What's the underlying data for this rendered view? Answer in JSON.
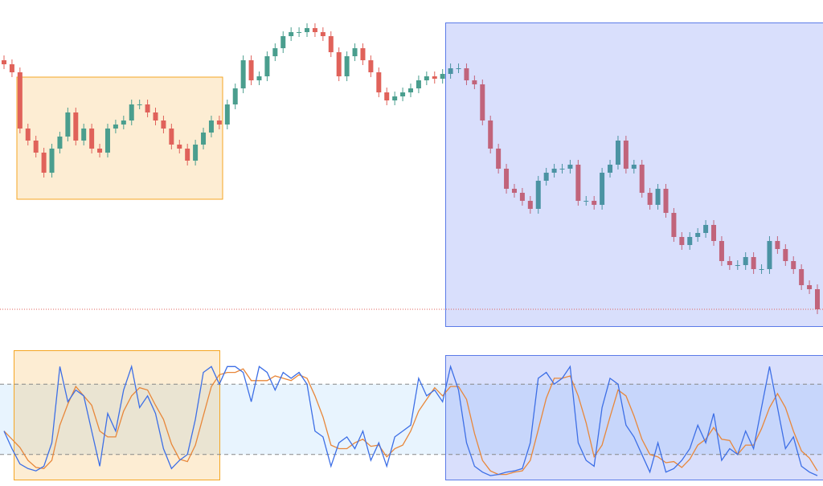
{
  "chart_data": [
    {
      "type": "candlestick",
      "open": [
        325,
        320,
        310,
        240,
        225,
        210,
        185,
        215,
        230,
        260,
        225,
        240,
        215,
        210,
        240,
        245,
        250,
        270,
        270,
        260,
        250,
        240,
        220,
        215,
        200,
        220,
        235,
        250,
        245,
        270,
        290,
        325,
        300,
        305,
        330,
        340,
        355,
        360,
        360,
        365,
        360,
        355,
        335,
        305,
        330,
        340,
        325,
        310,
        285,
        275,
        280,
        285,
        290,
        300,
        305,
        302,
        308,
        315,
        315,
        300,
        295,
        250,
        215,
        190,
        165,
        160,
        150,
        140,
        175,
        185,
        190,
        190,
        195,
        150,
        150,
        145,
        185,
        195,
        225,
        190,
        195,
        160,
        145,
        165,
        135,
        105,
        95,
        105,
        110,
        120,
        100,
        75,
        70,
        70,
        80,
        65,
        65,
        100,
        90,
        75,
        65,
        45,
        40
      ],
      "high": [
        331,
        326,
        316,
        246,
        231,
        216,
        221,
        236,
        266,
        266,
        246,
        246,
        221,
        246,
        251,
        256,
        276,
        276,
        276,
        266,
        256,
        246,
        226,
        221,
        226,
        241,
        256,
        256,
        276,
        296,
        331,
        331,
        311,
        336,
        346,
        361,
        366,
        366,
        371,
        371,
        366,
        361,
        341,
        336,
        346,
        346,
        331,
        316,
        291,
        286,
        291,
        296,
        306,
        311,
        311,
        314,
        321,
        321,
        321,
        306,
        301,
        256,
        221,
        196,
        171,
        166,
        156,
        181,
        191,
        196,
        196,
        201,
        201,
        156,
        156,
        191,
        201,
        231,
        231,
        201,
        201,
        166,
        171,
        171,
        141,
        111,
        111,
        116,
        126,
        126,
        106,
        81,
        76,
        86,
        86,
        71,
        106,
        106,
        96,
        81,
        71,
        51,
        46
      ],
      "low": [
        314,
        304,
        234,
        219,
        204,
        179,
        179,
        209,
        224,
        219,
        219,
        209,
        204,
        204,
        234,
        239,
        244,
        264,
        254,
        244,
        234,
        214,
        209,
        194,
        194,
        214,
        229,
        239,
        239,
        264,
        284,
        294,
        294,
        299,
        324,
        334,
        349,
        354,
        354,
        354,
        349,
        329,
        299,
        299,
        324,
        319,
        304,
        279,
        269,
        269,
        274,
        279,
        284,
        294,
        296,
        296,
        302,
        309,
        294,
        289,
        244,
        209,
        184,
        159,
        154,
        144,
        134,
        134,
        169,
        179,
        184,
        184,
        144,
        144,
        139,
        139,
        179,
        189,
        184,
        184,
        154,
        139,
        139,
        129,
        99,
        89,
        89,
        99,
        104,
        94,
        69,
        64,
        64,
        64,
        59,
        59,
        59,
        84,
        69,
        59,
        39,
        34,
        9
      ],
      "close": [
        320,
        310,
        240,
        225,
        210,
        185,
        215,
        230,
        260,
        225,
        240,
        215,
        210,
        240,
        245,
        250,
        270,
        270,
        260,
        250,
        240,
        220,
        215,
        200,
        220,
        235,
        250,
        245,
        270,
        290,
        325,
        300,
        305,
        330,
        340,
        355,
        360,
        360,
        365,
        360,
        355,
        335,
        305,
        330,
        340,
        325,
        310,
        285,
        275,
        280,
        285,
        290,
        300,
        305,
        302,
        308,
        315,
        315,
        300,
        295,
        250,
        215,
        190,
        165,
        160,
        150,
        140,
        175,
        185,
        190,
        190,
        195,
        150,
        150,
        145,
        185,
        195,
        225,
        190,
        195,
        160,
        145,
        165,
        135,
        105,
        95,
        105,
        110,
        120,
        100,
        75,
        70,
        70,
        80,
        65,
        65,
        100,
        90,
        75,
        65,
        45,
        40,
        15
      ],
      "ylim": [
        0,
        400
      ],
      "up_color": "#4a9e8e",
      "down_color": "#e0625a",
      "last_price_line": true
    },
    {
      "type": "line",
      "series": [
        {
          "color": "#3d6fe6",
          "values": [
            40,
            25,
            12,
            8,
            6,
            10,
            30,
            95,
            65,
            75,
            70,
            40,
            10,
            55,
            40,
            75,
            95,
            60,
            70,
            55,
            25,
            8,
            15,
            20,
            50,
            90,
            95,
            80,
            95,
            95,
            90,
            65,
            95,
            90,
            75,
            90,
            85,
            90,
            80,
            40,
            35,
            10,
            30,
            35,
            25,
            40,
            15,
            30,
            10,
            35,
            40,
            45,
            85,
            70,
            75,
            65,
            95,
            75,
            30,
            10,
            5,
            2,
            3,
            5,
            6,
            8,
            30,
            85,
            90,
            80,
            85,
            95,
            30,
            15,
            10,
            60,
            85,
            80,
            45,
            35,
            20,
            5,
            30,
            5,
            8,
            15,
            25,
            45,
            30,
            55,
            15,
            25,
            20,
            40,
            25,
            60,
            95,
            60,
            25,
            35,
            10,
            5,
            2
          ]
        },
        {
          "color": "#e8873a",
          "values": [
            40,
            33,
            26,
            15,
            9,
            8,
            15,
            45,
            63,
            78,
            70,
            62,
            40,
            35,
            35,
            57,
            70,
            77,
            75,
            62,
            50,
            29,
            16,
            14,
            28,
            53,
            78,
            88,
            90,
            90,
            93,
            83,
            83,
            83,
            87,
            85,
            83,
            88,
            85,
            70,
            52,
            28,
            25,
            25,
            30,
            33,
            27,
            28,
            18,
            25,
            28,
            40,
            57,
            67,
            77,
            70,
            78,
            78,
            67,
            38,
            15,
            6,
            3,
            3,
            5,
            6,
            15,
            41,
            68,
            85,
            85,
            87,
            70,
            47,
            18,
            28,
            52,
            75,
            70,
            53,
            33,
            20,
            18,
            13,
            14,
            9,
            16,
            28,
            33,
            43,
            33,
            32,
            20,
            28,
            28,
            42,
            60,
            72,
            60,
            40,
            23,
            17,
            6
          ]
        }
      ],
      "ylim": [
        0,
        100
      ],
      "levels": [
        80,
        20
      ],
      "band_color": "#2196f3"
    }
  ]
}
